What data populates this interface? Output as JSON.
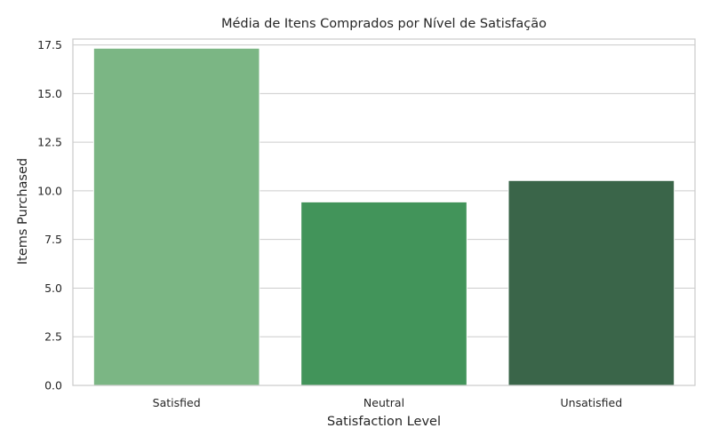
{
  "chart_data": {
    "type": "bar",
    "title": "Média de Itens Comprados por Nível de Satisfação",
    "xlabel": "Satisfaction Level",
    "ylabel": "Items Purchased",
    "categories": [
      "Satisfied",
      "Neutral",
      "Unsatisfied"
    ],
    "values": [
      17.33,
      9.43,
      10.53
    ],
    "colors": [
      "#7bb684",
      "#42945a",
      "#3a6549"
    ],
    "ylim": [
      0,
      17.8
    ],
    "yticks": [
      0,
      2.5,
      5,
      7.5,
      10,
      12.5,
      15,
      17.5
    ],
    "ytick_labels": [
      "0.0",
      "2.5",
      "5.0",
      "7.5",
      "10.0",
      "12.5",
      "15.0",
      "17.5"
    ],
    "grid": true,
    "grid_axis": "y",
    "grid_color": "#cccccc",
    "spine_color": "#cccccc",
    "background": "#ffffff"
  }
}
